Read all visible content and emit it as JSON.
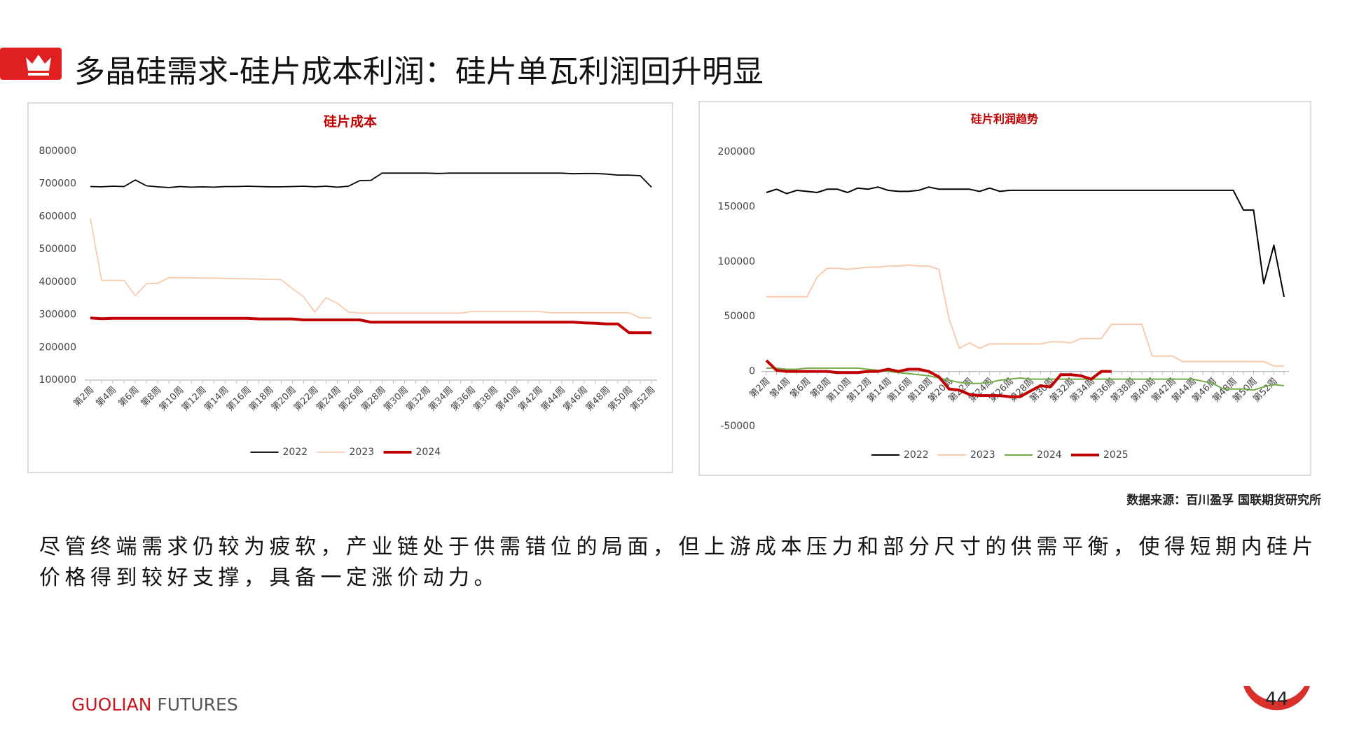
{
  "header": {
    "title": "多晶硅需求-硅片成本利润：硅片单瓦利润回升明显"
  },
  "chart_data": [
    {
      "type": "line",
      "title": "硅片成本",
      "categories": [
        "第2周",
        null,
        "第4周",
        null,
        "第6周",
        null,
        "第8周",
        null,
        "第10周",
        null,
        "第12周",
        null,
        "第14周",
        null,
        "第16周",
        null,
        "第18周",
        null,
        "第20周",
        null,
        "第22周",
        null,
        "第24周",
        null,
        "第26周",
        null,
        "第28周",
        null,
        "第30周",
        null,
        "第32周",
        null,
        "第34周",
        null,
        "第36周",
        null,
        "第38周",
        null,
        "第40周",
        null,
        "第42周",
        null,
        "第44周",
        null,
        "第46周",
        null,
        "第48周",
        null,
        "第50周",
        null,
        "第52周"
      ],
      "ylim": [
        100000,
        800000
      ],
      "yticks": [
        100000,
        200000,
        300000,
        400000,
        500000,
        600000,
        700000,
        800000
      ],
      "grid": false,
      "legend": "bottom",
      "series": [
        {
          "name": "2022",
          "color": "#000000",
          "line_width": 1.8,
          "values": [
            692000,
            691000,
            693000,
            692000,
            712000,
            694000,
            691000,
            689000,
            692000,
            690000,
            691000,
            690000,
            692000,
            692000,
            693000,
            692000,
            691000,
            691000,
            692000,
            693000,
            691000,
            693000,
            690000,
            693000,
            710000,
            711000,
            733000,
            733000,
            733000,
            733000,
            733000,
            732000,
            733000,
            733000,
            733000,
            733000,
            733000,
            733000,
            733000,
            733000,
            733000,
            733000,
            733000,
            731000,
            732000,
            732000,
            730000,
            727000,
            727000,
            725000,
            690000
          ]
        },
        {
          "name": "2023",
          "color": "#f8cbad",
          "line_width": 1.8,
          "values": [
            595000,
            405000,
            405000,
            405000,
            358000,
            395000,
            396000,
            413000,
            413000,
            413000,
            412000,
            412000,
            411000,
            410000,
            410000,
            409000,
            408000,
            407000,
            380000,
            355000,
            308000,
            352000,
            335000,
            308000,
            305000,
            305000,
            305000,
            305000,
            305000,
            305000,
            305000,
            305000,
            305000,
            305000,
            310000,
            310000,
            310000,
            310000,
            310000,
            310000,
            310000,
            306000,
            306000,
            306000,
            306000,
            306000,
            306000,
            306000,
            306000,
            290000,
            290000
          ]
        },
        {
          "name": "2024",
          "color": "#c00000",
          "line_width": 4,
          "values": [
            290000,
            288000,
            289000,
            289000,
            289000,
            289000,
            289000,
            289000,
            289000,
            289000,
            289000,
            289000,
            289000,
            289000,
            289000,
            287000,
            287000,
            287000,
            287000,
            284000,
            284000,
            284000,
            284000,
            284000,
            284000,
            277000,
            277000,
            277000,
            277000,
            277000,
            277000,
            277000,
            277000,
            277000,
            277000,
            277000,
            277000,
            277000,
            277000,
            277000,
            277000,
            277000,
            277000,
            277000,
            275000,
            274000,
            272000,
            272000,
            245000,
            245000,
            245000
          ]
        }
      ]
    },
    {
      "type": "line",
      "title": "硅片利润趋势",
      "categories": [
        "第2周",
        null,
        "第4周",
        null,
        "第6周",
        null,
        "第8周",
        null,
        "第10周",
        null,
        "第12周",
        null,
        "第14周",
        null,
        "第16周",
        null,
        "第18周",
        null,
        "第20周",
        null,
        "第22周",
        null,
        "第24周",
        null,
        "第26周",
        null,
        "第28周",
        null,
        "第30周",
        null,
        "第32周",
        null,
        "第34周",
        null,
        "第36周",
        null,
        "第38周",
        null,
        "第40周",
        null,
        "第42周",
        null,
        "第44周",
        null,
        "第46周",
        null,
        "第48周",
        null,
        "第50周",
        null,
        "第52周",
        null
      ],
      "ylim": [
        -50000,
        200000
      ],
      "yticks": [
        -50000,
        0,
        50000,
        100000,
        150000,
        200000
      ],
      "grid": false,
      "legend": "bottom",
      "series": [
        {
          "name": "2022",
          "color": "#000000",
          "line_width": 2,
          "values": [
            163000,
            166000,
            162000,
            165000,
            164000,
            163000,
            166000,
            166000,
            163000,
            167000,
            166000,
            168000,
            165000,
            164000,
            164000,
            165000,
            168000,
            166000,
            166000,
            166000,
            166000,
            164000,
            167000,
            164000,
            165000,
            165000,
            165000,
            165000,
            165000,
            165000,
            165000,
            165000,
            165000,
            165000,
            165000,
            165000,
            165000,
            165000,
            165000,
            165000,
            165000,
            165000,
            165000,
            165000,
            165000,
            165000,
            165000,
            147000,
            147000,
            80000,
            115000,
            68000
          ]
        },
        {
          "name": "2023",
          "color": "#f8cbad",
          "line_width": 2,
          "values": [
            68000,
            68000,
            68000,
            68000,
            68000,
            86000,
            94000,
            94000,
            93000,
            94000,
            95000,
            95000,
            96000,
            96000,
            97000,
            96000,
            96000,
            93000,
            48000,
            21000,
            26000,
            21000,
            25000,
            25000,
            25000,
            25000,
            25000,
            25000,
            27000,
            27000,
            26000,
            30000,
            30000,
            30000,
            43000,
            43000,
            43000,
            43000,
            14000,
            14000,
            14000,
            9000,
            9000,
            9000,
            9000,
            9000,
            9000,
            9000,
            9000,
            9000,
            5000,
            5000
          ]
        },
        {
          "name": "2024",
          "color": "#70ad47",
          "line_width": 2,
          "values": [
            3000,
            3000,
            2000,
            2000,
            3000,
            3000,
            3000,
            3000,
            3000,
            3000,
            2000,
            1000,
            0,
            -1000,
            -2000,
            -3000,
            -4000,
            -6000,
            -8000,
            -10000,
            -11000,
            -11000,
            -10000,
            -8000,
            -7000,
            -6000,
            -7000,
            -7000,
            -7000,
            -7000,
            -7000,
            -7000,
            -7000,
            -7000,
            -7000,
            -7000,
            -7000,
            -7000,
            -7000,
            -7000,
            -7000,
            -7000,
            -7000,
            -9000,
            -11000,
            -16000,
            -16000,
            -16000,
            -17000,
            -14000,
            -12000,
            -13000
          ]
        },
        {
          "name": "2025",
          "color": "#c00000",
          "line_width": 4,
          "values": [
            10000,
            1000,
            0,
            0,
            0,
            0,
            0,
            -1000,
            -1000,
            -1000,
            0,
            0,
            2000,
            0,
            2000,
            2000,
            0,
            -5000,
            -16000,
            -17000,
            -21000,
            -22000,
            -22000,
            -22000,
            -23000,
            -23000,
            -18000,
            -13000,
            -14000,
            -3000,
            -3000,
            -4000,
            -7000,
            0,
            0,
            null,
            null,
            null,
            null,
            null,
            null,
            null,
            null,
            null,
            null,
            null,
            null,
            null,
            null,
            null,
            null,
            null
          ]
        }
      ]
    }
  ],
  "source": "数据来源：百川盈孚  国联期货研究所",
  "body": "尽管终端需求仍较为疲软，产业链处于供需错位的局面，但上游成本压力和部分尺寸的供需平衡，使得短期内硅片价格得到较好支撑，具备一定涨价动力。",
  "footer": {
    "brand": "GUOLIAN",
    "suffix": "FUTURES",
    "page": 44
  }
}
